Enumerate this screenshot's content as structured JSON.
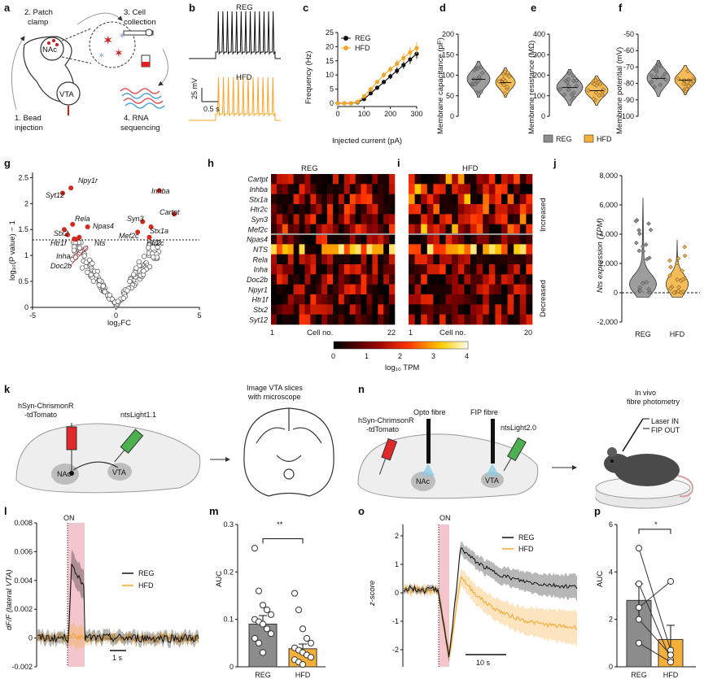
{
  "colors": {
    "reg": "#111111",
    "hfd": "#f5a52a",
    "reg_fill": "#8c8c8c",
    "hfd_fill": "#f5b03a",
    "stim": "#f2c6cc"
  },
  "panels": {
    "a": {
      "label": "a",
      "steps": [
        "2. Patch",
        "clamp",
        "3. Cell",
        "collection",
        "1. Bead",
        "injection",
        "4. RNA",
        "sequencing"
      ],
      "regions": [
        "NAc",
        "VTA"
      ]
    },
    "b": {
      "label": "b",
      "reg": "REG",
      "hfd": "HFD",
      "scale_v": "25 mV",
      "scale_t": "0.5 s"
    },
    "c": {
      "label": "c",
      "xlabel": "Injected current (pA)",
      "ylabel": "Frequency (Hz)",
      "legend": [
        "REG",
        "HFD"
      ]
    },
    "d": {
      "label": "d",
      "ylabel": "Membrane capacitance (pF)"
    },
    "e": {
      "label": "e",
      "ylabel": "Membrane resistance (MΩ)"
    },
    "f": {
      "label": "f",
      "ylabel": "Membrane potential (mV)"
    },
    "def_legend": [
      "REG",
      "HFD"
    ],
    "g": {
      "label": "g",
      "xlabel": "log₂FC",
      "ylabel": "log₁₀(P value) − 1",
      "genes": [
        "Npy1r",
        "Syt12",
        "Inhba",
        "Cartpt",
        "Rela",
        "Npas4",
        "Syn3",
        "Stx1a",
        "Stx2",
        "Mef2c",
        "Htr2c",
        "Htr1f",
        "Nts",
        "Inha",
        "Doc2b"
      ]
    },
    "h": {
      "label": "h",
      "title": "REG",
      "xlabel": "Cell no.",
      "x_start": "1",
      "x_end": "22"
    },
    "i": {
      "label": "i",
      "title": "HFD",
      "xlabel": "Cell no.",
      "x_start": "1",
      "x_end": "20",
      "side_up": "Increased",
      "side_down": "Decreased"
    },
    "heat_genes": [
      "Cartpt",
      "Inhba",
      "Stx1a",
      "Htr2c",
      "Syn3",
      "Mef2c",
      "Npas4",
      "NTS",
      "Rela",
      "Inha",
      "Doc2b",
      "Npyr1",
      "Htr1f",
      "Stx2",
      "Syt12"
    ],
    "colorbar": {
      "ticks": [
        "0",
        "1",
        "2",
        "3",
        "4"
      ],
      "label": "log₁₀ TPM"
    },
    "j": {
      "label": "j",
      "ylabel": "Nts expression (TPM)",
      "categories": [
        "REG",
        "HFD"
      ]
    },
    "k": {
      "label": "k",
      "virus": [
        "hSyn-ChrismonR",
        "-tdTomato"
      ],
      "sensor": "ntsLight1.1",
      "image": [
        "Image VTA slices",
        "with microscope"
      ],
      "regions": [
        "NAc",
        "VTA"
      ]
    },
    "n": {
      "label": "n",
      "virus": [
        "hSyn-ChrimsonR",
        "-tdTomato"
      ],
      "opto": "Opto fibre",
      "fip": "FIP fibre",
      "sensor": "ntsLight2.0",
      "invivo": [
        "In vivo",
        "fibre photometry"
      ],
      "laser": "Laser IN",
      "fipout": "FIP OUT",
      "regions": [
        "NAc",
        "VTA"
      ]
    },
    "l": {
      "label": "l",
      "on": "ON",
      "ylabel": "dF/F (lateral VTA)",
      "legend": [
        "REG",
        "HFD"
      ],
      "scale": "1 s"
    },
    "m": {
      "label": "m",
      "ylabel": "AUC",
      "sig": "**"
    },
    "o": {
      "label": "o",
      "on": "ON",
      "ylabel": "z-score",
      "legend": [
        "REG",
        "HFD"
      ],
      "scale": "10 s"
    },
    "p": {
      "label": "p",
      "ylabel": "AUC",
      "sig": "*"
    }
  },
  "chart_data": [
    {
      "panel": "c",
      "type": "line",
      "x": [
        0,
        25,
        50,
        75,
        100,
        125,
        150,
        175,
        200,
        225,
        250,
        275,
        300
      ],
      "series": [
        {
          "name": "REG",
          "values": [
            0,
            0,
            0,
            0.3,
            1.5,
            3.5,
            5.5,
            7.5,
            9.5,
            11.5,
            13.5,
            15.5,
            17.5
          ]
        },
        {
          "name": "HFD",
          "values": [
            0,
            0,
            0,
            0.5,
            2.5,
            5,
            7.5,
            10,
            12,
            14,
            16,
            18,
            19.5
          ]
        }
      ],
      "xlabel": "Injected current (pA)",
      "ylabel": "Frequency (Hz)",
      "xlim": [
        0,
        300
      ],
      "ylim": [
        0,
        25
      ]
    },
    {
      "panel": "d",
      "type": "violin",
      "categories": [
        "REG",
        "HFD"
      ],
      "ylabel": "Membrane capacitance (pF)",
      "ylim": [
        0,
        200
      ],
      "medians": [
        90,
        82
      ]
    },
    {
      "panel": "e",
      "type": "violin",
      "categories": [
        "REG",
        "HFD"
      ],
      "ylabel": "Membrane resistance (MΩ)",
      "ylim": [
        0,
        400
      ],
      "medians": [
        140,
        125
      ]
    },
    {
      "panel": "f",
      "type": "violin",
      "categories": [
        "REG",
        "HFD"
      ],
      "ylabel": "Membrane potential (mV)",
      "ylim": [
        -100,
        -50
      ],
      "medians": [
        -77,
        -78
      ]
    },
    {
      "panel": "g",
      "type": "scatter",
      "xlabel": "log₂FC",
      "ylabel": "log₁₀(P value) − 1",
      "xlim": [
        -5,
        5
      ],
      "ylim": [
        0,
        2.6
      ],
      "threshold": 1.3,
      "significant": [
        {
          "gene": "Npy1r",
          "x": -2.7,
          "y": 2.3
        },
        {
          "gene": "Syt12",
          "x": -3.2,
          "y": 2.2
        },
        {
          "gene": "Inhba",
          "x": 2.6,
          "y": 2.25
        },
        {
          "gene": "Cartpt",
          "x": 3.5,
          "y": 1.8
        },
        {
          "gene": "Rela",
          "x": -2.6,
          "y": 1.6
        },
        {
          "gene": "Npas4",
          "x": -1.7,
          "y": 1.55
        },
        {
          "gene": "Syn3",
          "x": 1.6,
          "y": 1.65
        },
        {
          "gene": "Stx1a",
          "x": 2.1,
          "y": 1.55
        },
        {
          "gene": "Stx2",
          "x": -3.1,
          "y": 1.5
        },
        {
          "gene": "Mef2c",
          "x": 1.3,
          "y": 1.45
        },
        {
          "gene": "Htr2c",
          "x": 2.0,
          "y": 1.35
        },
        {
          "gene": "Htr1f",
          "x": -2.9,
          "y": 1.4
        },
        {
          "gene": "Nts",
          "x": -2.2,
          "y": 1.35
        },
        {
          "gene": "Inha",
          "x": -2.5,
          "y": 1.32
        },
        {
          "gene": "Doc2b",
          "x": -2.4,
          "y": 1.31
        }
      ]
    },
    {
      "panel": "h",
      "type": "heatmap",
      "rows": 15,
      "cols": 22,
      "clim": [
        0,
        4
      ]
    },
    {
      "panel": "i",
      "type": "heatmap",
      "rows": 15,
      "cols": 20,
      "clim": [
        0,
        4
      ]
    },
    {
      "panel": "j",
      "type": "violin",
      "categories": [
        "REG",
        "HFD"
      ],
      "ylabel": "Nts expression (TPM)",
      "ylim": [
        -2000,
        8000
      ],
      "yticks": [
        "-2,000",
        "0",
        "2,000",
        "4,000",
        "6,000",
        "8,000"
      ]
    },
    {
      "panel": "l",
      "type": "line",
      "ylabel": "dF/F (lateral VTA)",
      "ylim": [
        -0.002,
        0.008
      ],
      "yticks": [
        "-0.002",
        "0",
        "0.002",
        "0.004",
        "0.006",
        "0.008"
      ],
      "series": [
        {
          "name": "REG",
          "peak": 0.005
        },
        {
          "name": "HFD",
          "peak": 0
        }
      ]
    },
    {
      "panel": "m",
      "type": "bar",
      "categories": [
        "REG",
        "HFD"
      ],
      "values": [
        0.09,
        0.038
      ],
      "errors": [
        0.018,
        0.01
      ],
      "ylabel": "AUC",
      "ylim": [
        0,
        0.3
      ],
      "points": [
        [
          0.25,
          0.16,
          0.13,
          0.12,
          0.11,
          0.1,
          0.095,
          0.09,
          0.08,
          0.07,
          0.06,
          0.05,
          0.03
        ],
        [
          0.155,
          0.12,
          0.08,
          0.06,
          0.05,
          0.04,
          0.035,
          0.03,
          0.025,
          0.02,
          0.015,
          0.01,
          0.005
        ]
      ]
    },
    {
      "panel": "o",
      "type": "line",
      "ylabel": "z-score",
      "ylim": [
        -2,
        2
      ],
      "yticks": [
        "-2",
        "-1",
        "0",
        "1",
        "2"
      ],
      "series": [
        {
          "name": "REG"
        },
        {
          "name": "HFD"
        }
      ]
    },
    {
      "panel": "p",
      "type": "bar",
      "categories": [
        "REG",
        "HFD"
      ],
      "values": [
        2.8,
        1.15
      ],
      "errors": [
        0.7,
        0.6
      ],
      "ylabel": "AUC",
      "ylim": [
        0,
        6
      ],
      "pairs": [
        [
          5,
          0.7
        ],
        [
          3.5,
          0.3
        ],
        [
          2.5,
          3.6
        ],
        [
          2.0,
          0.5
        ],
        [
          1.0,
          0.2
        ]
      ]
    }
  ]
}
